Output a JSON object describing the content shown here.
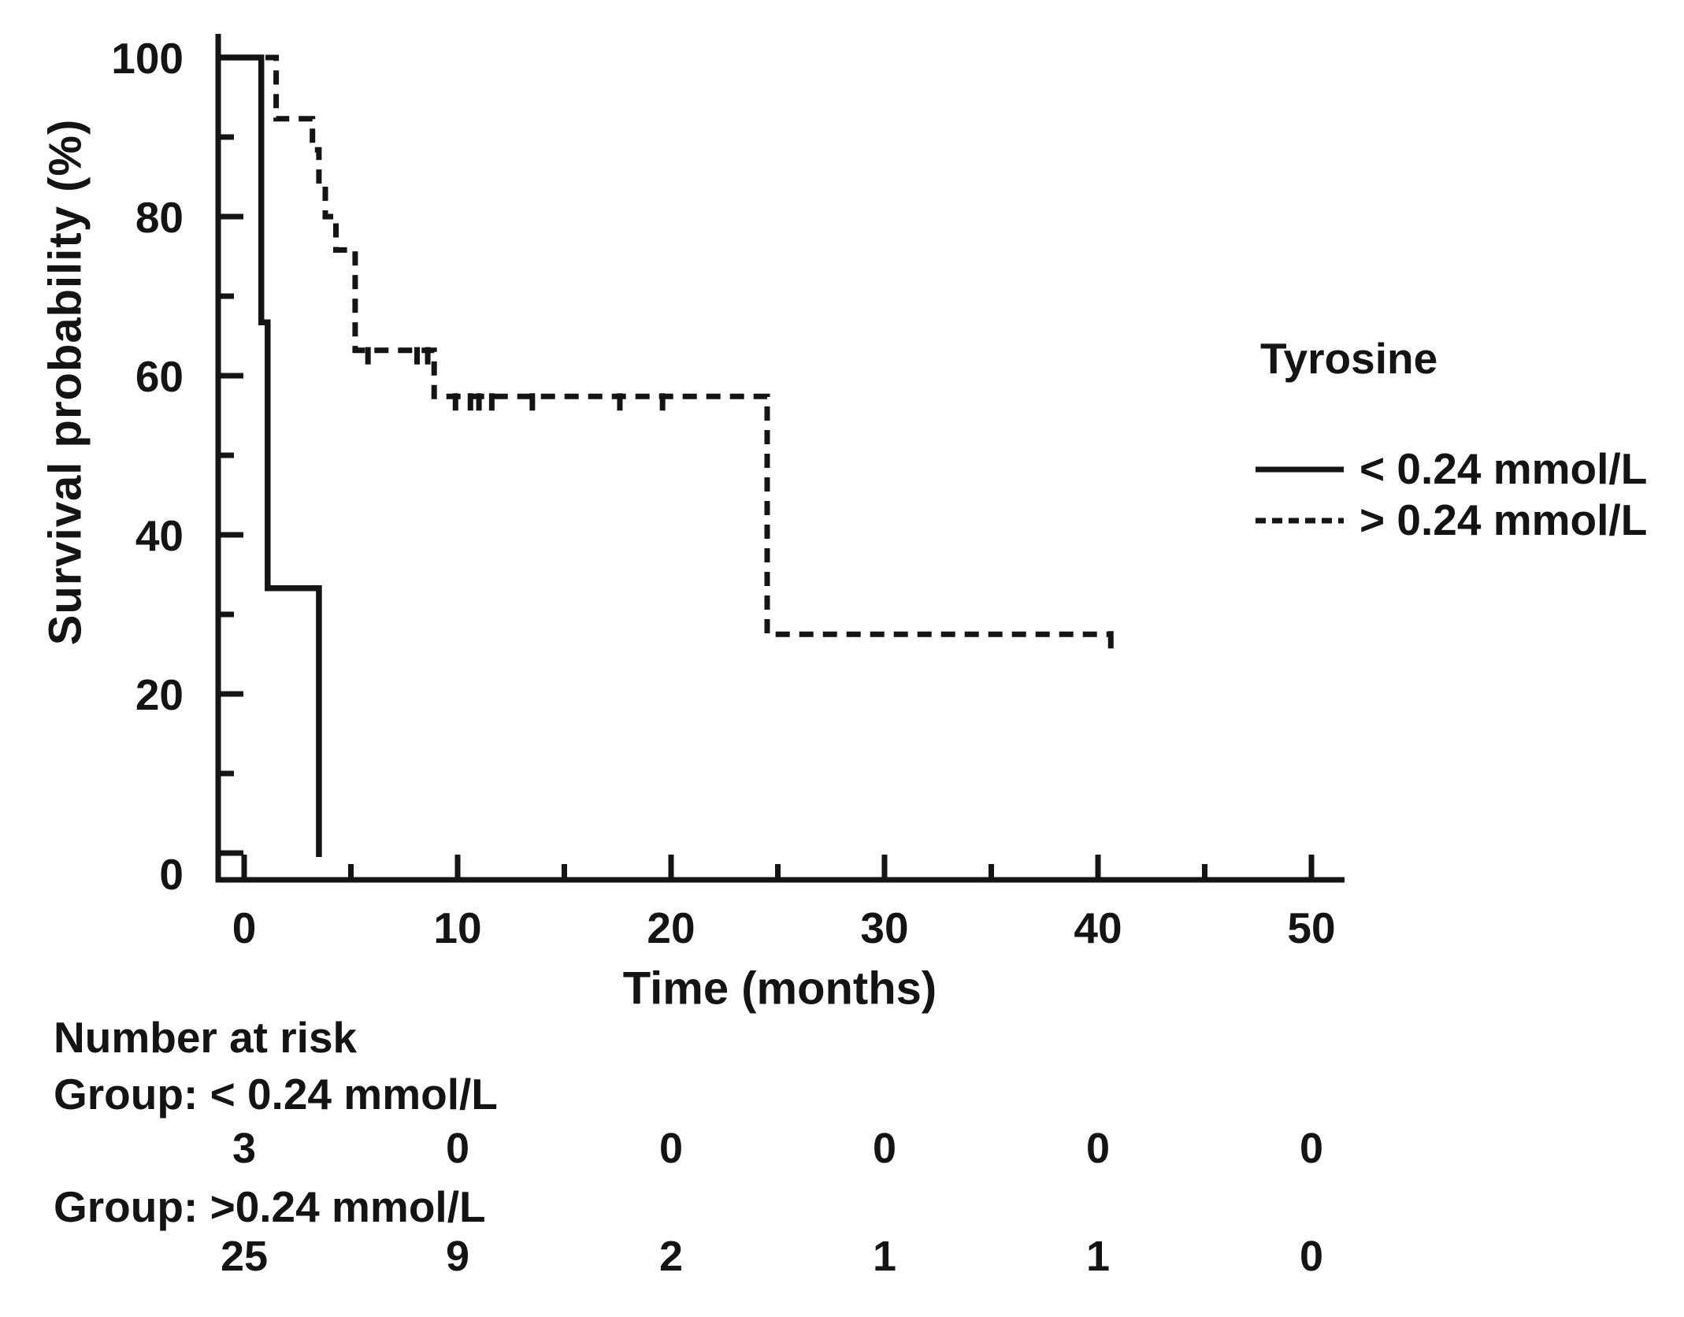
{
  "figure": {
    "y_axis_label": "Survival probability (%)",
    "x_axis_label": "Time (months)",
    "legend": {
      "title": "Tyrosine",
      "items": [
        {
          "label": "< 0.24 mmol/L",
          "style": "solid"
        },
        {
          "label": "> 0.24 mmol/L",
          "style": "dashed"
        }
      ]
    },
    "risk_table": {
      "title": "Number at risk",
      "groups": [
        {
          "label": "Group: < 0.24 mmol/L",
          "counts": [
            "3",
            "0",
            "0",
            "0",
            "0",
            "0"
          ]
        },
        {
          "label": "Group: >0.24 mmol/L",
          "counts": [
            "25",
            "9",
            "2",
            "1",
            "1",
            "0"
          ]
        }
      ]
    },
    "ink_color": "#141414"
  },
  "chart_data": {
    "type": "line",
    "subtype": "kaplan-meier-step",
    "title": "",
    "xlabel": "Time (months)",
    "ylabel": "Survival probability (%)",
    "xlim": [
      0,
      50
    ],
    "ylim": [
      0,
      100
    ],
    "x_ticks": [
      0,
      10,
      20,
      30,
      40,
      50
    ],
    "x_minor_ticks": [
      5,
      15,
      25,
      35,
      45
    ],
    "y_ticks": [
      0,
      20,
      40,
      60,
      80,
      100
    ],
    "y_minor_ticks": [
      10,
      30,
      50,
      70,
      90
    ],
    "grid": false,
    "legend_position": "right",
    "series": [
      {
        "name": "< 0.24 mmol/L",
        "line_style": "solid",
        "points": [
          [
            0,
            100
          ],
          [
            0.8,
            100
          ],
          [
            0.8,
            66.7
          ],
          [
            1.1,
            66.7
          ],
          [
            1.1,
            33.3
          ],
          [
            3.5,
            33.3
          ],
          [
            3.5,
            -0.5
          ]
        ],
        "censor_marks": []
      },
      {
        "name": "> 0.24 mmol/L",
        "line_style": "dashed",
        "points": [
          [
            0,
            100
          ],
          [
            1.5,
            100
          ],
          [
            1.5,
            92.3
          ],
          [
            3.2,
            92.3
          ],
          [
            3.2,
            88.4
          ],
          [
            3.5,
            88.4
          ],
          [
            3.5,
            84.1
          ],
          [
            3.8,
            84.1
          ],
          [
            3.8,
            80
          ],
          [
            4.3,
            80
          ],
          [
            4.3,
            75.8
          ],
          [
            5.2,
            75.8
          ],
          [
            5.2,
            63.2
          ],
          [
            8.9,
            63.2
          ],
          [
            8.9,
            57.4
          ],
          [
            24.5,
            57.4
          ],
          [
            24.5,
            27.5
          ],
          [
            40.6,
            27.5
          ]
        ],
        "censor_marks": [
          [
            5.8,
            63.2
          ],
          [
            8.1,
            63.2
          ],
          [
            8.6,
            63.2
          ],
          [
            9.9,
            57.4
          ],
          [
            10.6,
            57.4
          ],
          [
            11.0,
            57.4
          ],
          [
            11.6,
            57.4
          ],
          [
            13.5,
            57.4
          ],
          [
            17.6,
            57.4
          ],
          [
            19.6,
            57.4
          ],
          [
            40.6,
            27.5
          ]
        ]
      }
    ],
    "number_at_risk_times": [
      0,
      10,
      20,
      30,
      40,
      50
    ]
  }
}
